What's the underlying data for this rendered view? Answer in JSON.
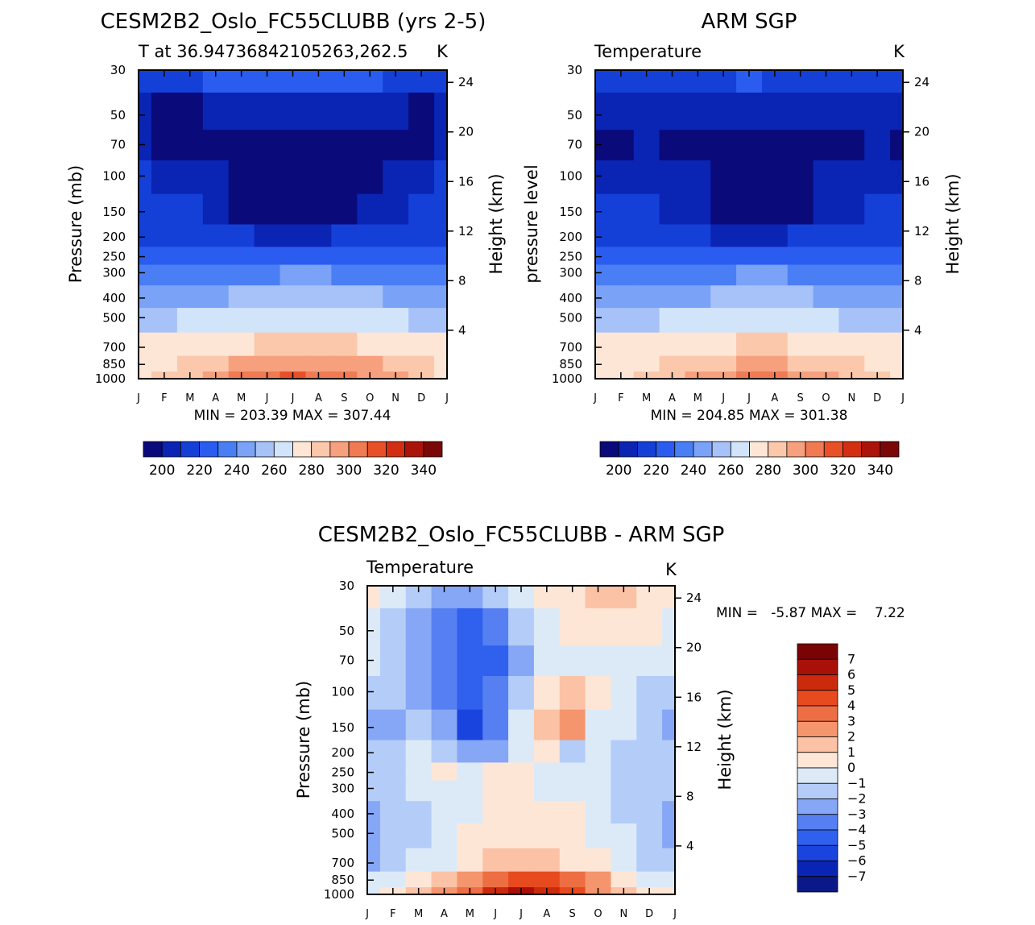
{
  "colors": {
    "abs_palette": [
      "#0a0a7a",
      "#0a24b4",
      "#1440d8",
      "#2a5cf0",
      "#4a7ef4",
      "#7aa2f6",
      "#a6c2f8",
      "#d2e4fa",
      "#fde6d6",
      "#fbc8ac",
      "#f7a07e",
      "#f07a52",
      "#e85028",
      "#d42e12",
      "#aa140a",
      "#7a0808"
    ],
    "diff_palette": [
      "#0a1888",
      "#0a24b4",
      "#1a44de",
      "#3060ee",
      "#5680f2",
      "#86a6f6",
      "#b4ccf8",
      "#dceaf8",
      "#fde6d6",
      "#fbc2a6",
      "#f5956e",
      "#ee6e44",
      "#e64a1e",
      "#cc2a0c",
      "#a81008",
      "#7a0404"
    ]
  },
  "chart_data": [
    {
      "id": "model",
      "type": "heatmap",
      "title": "CESM2B2_Oslo_FC55CLUBB (yrs 2-5)",
      "subtitle_left": "T at 36.94736842105263,262.5",
      "subtitle_right": "K",
      "ylabel": "Pressure (mb)",
      "ylabel_right": "Height (km)",
      "x_ticks": [
        "J",
        "F",
        "M",
        "A",
        "M",
        "J",
        "J",
        "A",
        "S",
        "O",
        "N",
        "D",
        "J"
      ],
      "y_ticks": [
        "30",
        "50",
        "70",
        "100",
        "150",
        "200",
        "250",
        "300",
        "400",
        "500",
        "700",
        "850",
        "1000"
      ],
      "y_ticks_right": [
        "24",
        "20",
        "16",
        "12",
        "8",
        "4"
      ],
      "stats": "MIN = 203.39 MAX = 307.44",
      "min": 203.39,
      "max": 307.44,
      "colorbar_labels": [
        "200",
        "220",
        "240",
        "260",
        "280",
        "300",
        "320",
        "340"
      ],
      "bands_by_level": [
        [
          2,
          2,
          2,
          3,
          3,
          3,
          3,
          3,
          3,
          3,
          2,
          2,
          2
        ],
        [
          1,
          0,
          0,
          1,
          1,
          1,
          1,
          1,
          1,
          1,
          1,
          0,
          1
        ],
        [
          1,
          0,
          0,
          0,
          0,
          0,
          0,
          0,
          0,
          0,
          0,
          0,
          1
        ],
        [
          2,
          1,
          1,
          1,
          0,
          0,
          0,
          0,
          0,
          0,
          1,
          1,
          2
        ],
        [
          2,
          2,
          2,
          1,
          0,
          0,
          0,
          0,
          0,
          1,
          1,
          2,
          2
        ],
        [
          2,
          2,
          2,
          2,
          2,
          1,
          1,
          1,
          2,
          2,
          2,
          2,
          2
        ],
        [
          3,
          3,
          3,
          3,
          3,
          3,
          3,
          3,
          3,
          3,
          3,
          3,
          3
        ],
        [
          4,
          4,
          4,
          4,
          4,
          4,
          5,
          5,
          4,
          4,
          4,
          4,
          4
        ],
        [
          5,
          5,
          5,
          5,
          6,
          6,
          6,
          6,
          6,
          6,
          5,
          5,
          5
        ],
        [
          6,
          6,
          7,
          7,
          7,
          7,
          7,
          7,
          7,
          7,
          7,
          6,
          6
        ],
        [
          8,
          8,
          8,
          8,
          8,
          9,
          9,
          9,
          9,
          8,
          8,
          8,
          8
        ],
        [
          8,
          8,
          9,
          9,
          10,
          10,
          10,
          10,
          10,
          10,
          9,
          9,
          8
        ],
        [
          8,
          9,
          9,
          10,
          11,
          11,
          12,
          11,
          11,
          10,
          10,
          9,
          8
        ]
      ]
    },
    {
      "id": "obs",
      "type": "heatmap",
      "title": "ARM SGP",
      "subtitle_left": "Temperature",
      "subtitle_right": "K",
      "ylabel": "pressure level",
      "ylabel_right": "Height (km)",
      "x_ticks": [
        "J",
        "F",
        "M",
        "A",
        "M",
        "J",
        "J",
        "A",
        "S",
        "O",
        "N",
        "D",
        "J"
      ],
      "y_ticks": [
        "30",
        "50",
        "70",
        "100",
        "150",
        "200",
        "250",
        "300",
        "400",
        "500",
        "700",
        "850",
        "1000"
      ],
      "y_ticks_right": [
        "24",
        "20",
        "16",
        "12",
        "8",
        "4"
      ],
      "stats": "MIN = 204.85 MAX = 301.38",
      "min": 204.85,
      "max": 301.38,
      "colorbar_labels": [
        "200",
        "220",
        "240",
        "260",
        "280",
        "300",
        "320",
        "340"
      ],
      "bands_by_level": [
        [
          2,
          2,
          2,
          2,
          2,
          2,
          3,
          2,
          2,
          2,
          2,
          2,
          2
        ],
        [
          1,
          1,
          1,
          1,
          1,
          1,
          1,
          1,
          1,
          1,
          1,
          1,
          1
        ],
        [
          0,
          0,
          1,
          0,
          0,
          0,
          0,
          0,
          0,
          0,
          0,
          1,
          0
        ],
        [
          1,
          1,
          1,
          1,
          1,
          0,
          0,
          0,
          0,
          1,
          1,
          1,
          1
        ],
        [
          2,
          2,
          2,
          1,
          1,
          0,
          0,
          0,
          0,
          1,
          1,
          2,
          2
        ],
        [
          2,
          2,
          2,
          2,
          2,
          1,
          1,
          1,
          2,
          2,
          2,
          2,
          2
        ],
        [
          3,
          3,
          3,
          3,
          3,
          3,
          3,
          3,
          3,
          3,
          3,
          3,
          3
        ],
        [
          4,
          4,
          4,
          4,
          4,
          4,
          5,
          5,
          4,
          4,
          4,
          4,
          4
        ],
        [
          5,
          5,
          5,
          5,
          5,
          6,
          6,
          6,
          6,
          5,
          5,
          5,
          5
        ],
        [
          6,
          6,
          6,
          7,
          7,
          7,
          7,
          7,
          7,
          7,
          6,
          6,
          6
        ],
        [
          8,
          8,
          8,
          8,
          8,
          8,
          9,
          9,
          8,
          8,
          8,
          8,
          8
        ],
        [
          8,
          8,
          8,
          9,
          9,
          9,
          10,
          10,
          9,
          9,
          9,
          8,
          8
        ],
        [
          8,
          8,
          9,
          9,
          10,
          10,
          11,
          11,
          10,
          10,
          9,
          9,
          8
        ]
      ]
    },
    {
      "id": "diff",
      "type": "heatmap",
      "title": "CESM2B2_Oslo_FC55CLUBB - ARM SGP",
      "subtitle_left": "Temperature",
      "subtitle_right": "K",
      "ylabel": "Pressure (mb)",
      "ylabel_right": "Height (km)",
      "x_ticks": [
        "J",
        "F",
        "M",
        "A",
        "M",
        "J",
        "J",
        "A",
        "S",
        "O",
        "N",
        "D",
        "J"
      ],
      "y_ticks": [
        "30",
        "50",
        "70",
        "100",
        "150",
        "200",
        "250",
        "300",
        "400",
        "500",
        "700",
        "850",
        "1000"
      ],
      "y_ticks_right": [
        "24",
        "20",
        "16",
        "12",
        "8",
        "4"
      ],
      "stats": "MIN =   -5.87 MAX =    7.22",
      "min": -5.87,
      "max": 7.22,
      "colorbar_labels": [
        "7",
        "6",
        "5",
        "4",
        "3",
        "2",
        "1",
        "0",
        "-1",
        "-2",
        "-3",
        "-4",
        "-5",
        "-6",
        "-7"
      ],
      "bands_by_level": [
        [
          8,
          7,
          6,
          5,
          5,
          6,
          7,
          8,
          8,
          9,
          9,
          8,
          8
        ],
        [
          7,
          6,
          5,
          4,
          3,
          4,
          6,
          7,
          8,
          8,
          8,
          8,
          7
        ],
        [
          7,
          6,
          5,
          4,
          3,
          3,
          5,
          7,
          7,
          7,
          7,
          7,
          7
        ],
        [
          6,
          6,
          5,
          4,
          3,
          4,
          6,
          8,
          9,
          8,
          7,
          6,
          6
        ],
        [
          5,
          5,
          6,
          5,
          2,
          4,
          7,
          9,
          10,
          7,
          7,
          6,
          5
        ],
        [
          6,
          6,
          7,
          6,
          5,
          5,
          7,
          8,
          6,
          7,
          6,
          6,
          6
        ],
        [
          6,
          6,
          7,
          8,
          7,
          8,
          8,
          7,
          7,
          7,
          6,
          6,
          6
        ],
        [
          6,
          6,
          7,
          7,
          7,
          8,
          8,
          7,
          7,
          7,
          6,
          6,
          6
        ],
        [
          5,
          6,
          6,
          7,
          7,
          8,
          8,
          8,
          8,
          7,
          6,
          6,
          5
        ],
        [
          5,
          6,
          6,
          7,
          8,
          8,
          8,
          8,
          8,
          7,
          7,
          6,
          5
        ],
        [
          5,
          6,
          7,
          7,
          8,
          9,
          9,
          9,
          8,
          8,
          7,
          6,
          6
        ],
        [
          7,
          7,
          8,
          9,
          10,
          11,
          12,
          12,
          11,
          10,
          8,
          7,
          7
        ],
        [
          7,
          8,
          9,
          10,
          11,
          13,
          14,
          13,
          12,
          10,
          9,
          8,
          8
        ]
      ]
    }
  ]
}
